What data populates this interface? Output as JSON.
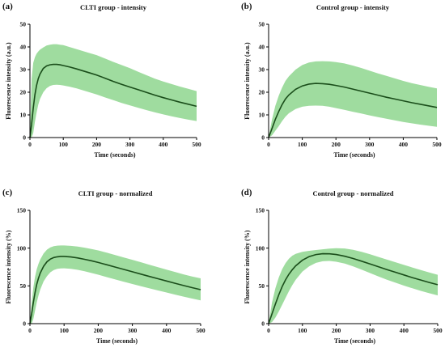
{
  "chart_data": [
    {
      "letter": "(a)",
      "type": "area",
      "title": "CLTI group - intensity",
      "xlabel": "Time  (seconds)",
      "ylabel": "Fluorescence intensity  (a.u.)",
      "xlim": [
        0,
        500
      ],
      "ylim": [
        0,
        50
      ],
      "xticks": [
        0,
        100,
        200,
        300,
        400,
        500
      ],
      "yticks": [
        0,
        10,
        20,
        30,
        40,
        50
      ],
      "line_color": "#1a4d1a",
      "band_color": "#9fdc9f",
      "x": [
        0,
        5,
        10,
        15,
        20,
        25,
        30,
        40,
        50,
        60,
        70,
        80,
        90,
        100,
        120,
        140,
        160,
        180,
        200,
        225,
        250,
        275,
        300,
        325,
        350,
        375,
        400,
        425,
        450,
        475,
        500
      ],
      "mean": [
        0,
        6,
        13,
        19,
        23,
        26,
        28,
        30.5,
        31.6,
        32.1,
        32.3,
        32.3,
        32.1,
        31.8,
        31.1,
        30.3,
        29.4,
        28.5,
        27.6,
        26.2,
        24.8,
        23.5,
        22.3,
        21.1,
        19.9,
        18.7,
        17.6,
        16.6,
        15.6,
        14.7,
        13.8
      ],
      "upper": [
        0,
        26,
        33,
        35.5,
        37,
        38,
        38.8,
        39.8,
        40.6,
        41,
        41.2,
        41.2,
        41,
        40.8,
        39.9,
        39,
        38.1,
        37.2,
        36.4,
        34.9,
        33.4,
        32,
        30.6,
        29,
        27.5,
        26,
        24.7,
        23.6,
        22.5,
        21.5,
        20.5
      ],
      "lower": [
        0,
        0,
        2,
        7,
        11,
        14.5,
        17,
        20,
        21.8,
        22.8,
        23.2,
        23.3,
        23.2,
        23,
        22.4,
        21.7,
        20.8,
        19.9,
        19,
        17.7,
        16.5,
        15.3,
        14.2,
        13.1,
        12.1,
        11.1,
        10.2,
        9.4,
        8.6,
        7.9,
        7.3
      ]
    },
    {
      "letter": "(b)",
      "type": "area",
      "title": "Control group - intensity",
      "xlabel": "Time  (seconds)",
      "ylabel": "Fluorescence intensity  (a.u.)",
      "xlim": [
        0,
        500
      ],
      "ylim": [
        0,
        50
      ],
      "xticks": [
        0,
        100,
        200,
        300,
        400,
        500
      ],
      "yticks": [
        0,
        10,
        20,
        30,
        40,
        50
      ],
      "line_color": "#1a4d1a",
      "band_color": "#9fdc9f",
      "x": [
        0,
        10,
        20,
        30,
        40,
        50,
        60,
        80,
        100,
        120,
        140,
        160,
        180,
        200,
        225,
        250,
        275,
        300,
        325,
        350,
        375,
        400,
        425,
        450,
        475,
        500
      ],
      "mean": [
        0,
        4,
        8,
        11.5,
        14.5,
        17,
        18.8,
        21.3,
        22.8,
        23.6,
        23.9,
        23.8,
        23.5,
        23,
        22.3,
        21.4,
        20.5,
        19.6,
        18.7,
        17.8,
        17,
        16.2,
        15.4,
        14.7,
        14,
        13.3
      ],
      "upper": [
        0,
        8,
        14,
        18.5,
        22,
        25,
        27,
        30,
        32,
        33.1,
        33.6,
        33.7,
        33.6,
        33.3,
        32.7,
        31.8,
        30.7,
        29.5,
        28.3,
        27.2,
        26.1,
        25,
        24,
        23.2,
        22.4,
        21.7
      ],
      "lower": [
        0,
        1,
        3,
        5,
        7.2,
        9.2,
        10.7,
        12.6,
        13.6,
        14,
        14.1,
        14,
        13.6,
        13,
        12.2,
        11.4,
        10.6,
        9.8,
        9,
        8.3,
        7.6,
        6.9,
        6.3,
        5.7,
        5.2,
        4.7
      ]
    },
    {
      "letter": "(c)",
      "type": "area",
      "title": "CLTI group - normalized",
      "xlabel": "Time  (seconds)",
      "ylabel": "Fluorescence intensity (%)",
      "xlim": [
        0,
        500
      ],
      "ylim": [
        0,
        150
      ],
      "xticks": [
        0,
        100,
        200,
        300,
        400,
        500
      ],
      "yticks": [
        0,
        50,
        100,
        150
      ],
      "line_color": "#1a4d1a",
      "band_color": "#9fdc9f",
      "x": [
        0,
        5,
        10,
        15,
        20,
        25,
        30,
        40,
        50,
        60,
        70,
        80,
        90,
        100,
        120,
        140,
        160,
        180,
        200,
        225,
        250,
        275,
        300,
        325,
        350,
        375,
        400,
        425,
        450,
        475,
        500
      ],
      "mean": [
        0,
        13,
        28,
        41,
        52,
        60,
        67,
        76,
        82,
        85.5,
        87.5,
        88.5,
        89,
        89,
        88.3,
        87,
        85.2,
        83.2,
        81,
        78,
        74.9,
        71.8,
        68.7,
        65.6,
        62.5,
        59.5,
        56.5,
        53.5,
        50.5,
        47.7,
        45
      ],
      "upper": [
        0,
        27,
        48,
        62,
        72,
        79,
        85,
        93,
        98,
        101,
        102.6,
        103.3,
        103.5,
        103.5,
        103,
        102,
        100.6,
        98.9,
        97,
        94,
        90.8,
        87.6,
        84.5,
        81.3,
        78,
        74.8,
        71.6,
        68.5,
        65.3,
        62.4,
        60
      ],
      "lower": [
        0,
        0,
        6,
        17,
        28,
        37,
        45,
        56,
        63,
        68,
        71,
        72.6,
        73.2,
        73.3,
        72.6,
        71.2,
        69.3,
        67.1,
        64.8,
        61.6,
        58.5,
        55.5,
        52.5,
        49.6,
        46.7,
        43.9,
        41.2,
        38.5,
        35.8,
        33.2,
        30.8
      ]
    },
    {
      "letter": "(d)",
      "type": "area",
      "title": "Control group - normalized",
      "xlabel": "Time  (seconds)",
      "ylabel": "Fluorescence intensity (%)",
      "xlim": [
        0,
        500
      ],
      "ylim": [
        0,
        150
      ],
      "xticks": [
        0,
        100,
        200,
        300,
        400,
        500
      ],
      "yticks": [
        0,
        50,
        100,
        150
      ],
      "line_color": "#1a4d1a",
      "band_color": "#9fdc9f",
      "x": [
        0,
        10,
        20,
        30,
        40,
        50,
        60,
        70,
        80,
        100,
        120,
        140,
        160,
        180,
        200,
        225,
        250,
        275,
        300,
        325,
        350,
        375,
        400,
        425,
        450,
        475,
        500
      ],
      "mean": [
        0,
        13,
        26,
        38,
        49,
        58,
        65.5,
        71.5,
        76.5,
        84,
        88.8,
        91.5,
        92.6,
        92.5,
        91.5,
        89.2,
        86.2,
        82.7,
        79,
        75.3,
        71.6,
        68,
        64.5,
        61,
        57.7,
        54.5,
        51.5
      ],
      "upper": [
        0,
        28,
        47,
        61,
        72,
        80,
        86,
        90,
        92.5,
        95,
        96.4,
        97.5,
        98.5,
        99.4,
        100,
        99.5,
        97.8,
        95,
        91.8,
        88.3,
        84.8,
        81.3,
        77.8,
        74.4,
        71,
        67.8,
        64.7
      ],
      "lower": [
        0,
        2,
        8,
        16,
        25,
        34,
        43,
        51,
        58,
        69,
        76,
        80.5,
        82.6,
        83,
        82,
        79.5,
        75.8,
        71.5,
        67,
        62.5,
        58.2,
        54.2,
        50.4,
        46.8,
        43.4,
        40.3,
        37.4
      ]
    }
  ]
}
